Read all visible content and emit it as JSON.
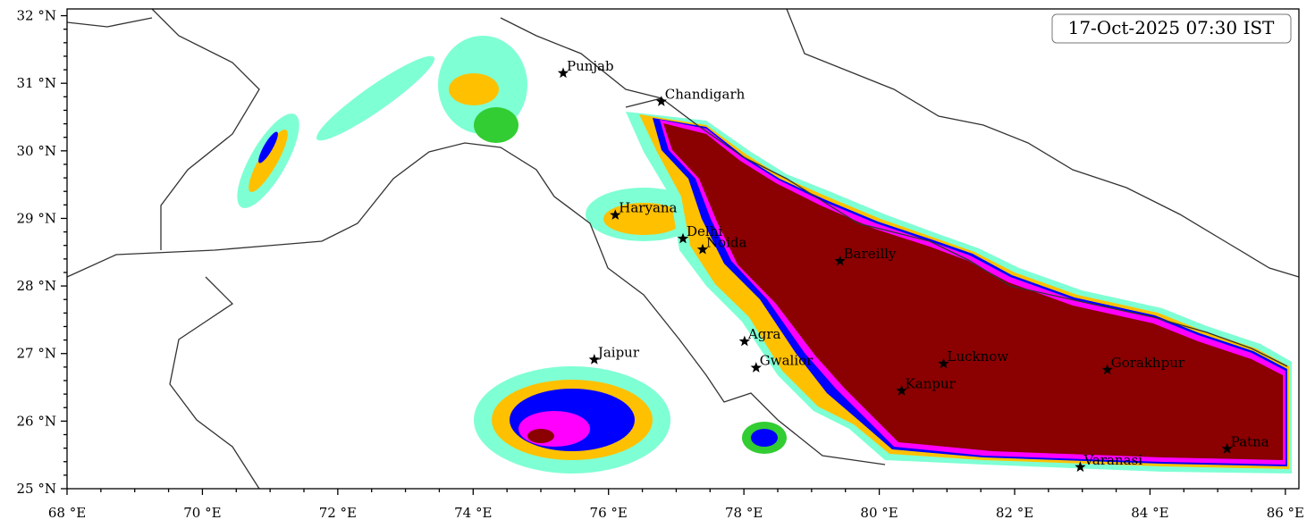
{
  "timestamp": "17-Oct-2025 07:30 IST",
  "map": {
    "xlim": [
      68,
      86.2
    ],
    "ylim": [
      25,
      32.1
    ],
    "xticks": [
      {
        "value": 68,
        "label": "68 °E"
      },
      {
        "value": 70,
        "label": "70 °E"
      },
      {
        "value": 72,
        "label": "72 °E"
      },
      {
        "value": 74,
        "label": "74 °E"
      },
      {
        "value": 76,
        "label": "76 °E"
      },
      {
        "value": 78,
        "label": "78 °E"
      },
      {
        "value": 80,
        "label": "80 °E"
      },
      {
        "value": 82,
        "label": "82 °E"
      },
      {
        "value": 84,
        "label": "84 °E"
      },
      {
        "value": 86,
        "label": "86 °E"
      }
    ],
    "yticks": [
      {
        "value": 25,
        "label": "25 °N"
      },
      {
        "value": 26,
        "label": "26 °N"
      },
      {
        "value": 27,
        "label": "27 °N"
      },
      {
        "value": 28,
        "label": "28 °N"
      },
      {
        "value": 29,
        "label": "29 °N"
      },
      {
        "value": 30,
        "label": "30 °N"
      },
      {
        "value": 31,
        "label": "31 °N"
      },
      {
        "value": 32,
        "label": "32 °N"
      }
    ],
    "cities": [
      {
        "name": "Punjab",
        "lon": 75.33,
        "lat": 31.15
      },
      {
        "name": "Chandigarh",
        "lon": 76.78,
        "lat": 30.73
      },
      {
        "name": "Haryana",
        "lon": 76.1,
        "lat": 29.05
      },
      {
        "name": "Delhi",
        "lon": 77.1,
        "lat": 28.7
      },
      {
        "name": "Noida",
        "lon": 77.39,
        "lat": 28.54
      },
      {
        "name": "Bareilly",
        "lon": 79.42,
        "lat": 28.37
      },
      {
        "name": "Agra",
        "lon": 78.01,
        "lat": 27.18
      },
      {
        "name": "Jaipur",
        "lon": 75.79,
        "lat": 26.91
      },
      {
        "name": "Gwalior",
        "lon": 78.18,
        "lat": 26.79
      },
      {
        "name": "Lucknow",
        "lon": 80.95,
        "lat": 26.85
      },
      {
        "name": "Kanpur",
        "lon": 80.33,
        "lat": 26.45
      },
      {
        "name": "Gorakhpur",
        "lon": 83.37,
        "lat": 26.76
      },
      {
        "name": "Varanasi",
        "lon": 82.97,
        "lat": 25.32
      },
      {
        "name": "Patna",
        "lon": 85.14,
        "lat": 25.59
      }
    ]
  }
}
